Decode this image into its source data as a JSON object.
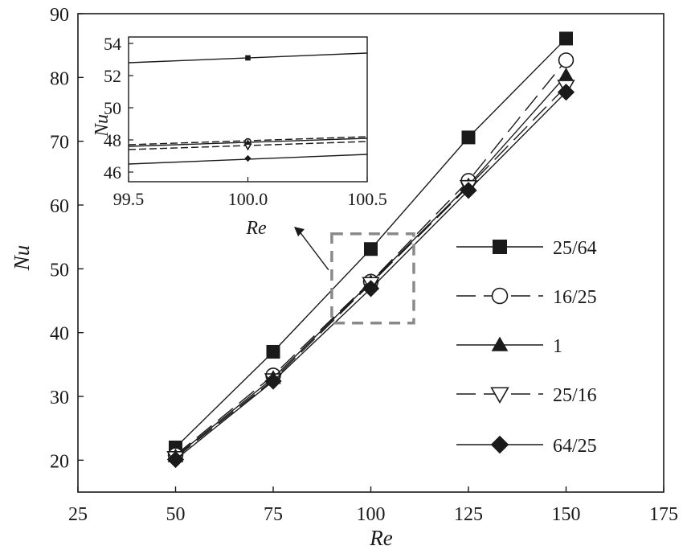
{
  "chart_data": [
    {
      "type": "line",
      "xlabel": "Re",
      "ylabel": "Nu",
      "xlim": [
        25,
        175
      ],
      "ylim": [
        15,
        90
      ],
      "xticks": [
        25,
        50,
        75,
        100,
        125,
        150,
        175
      ],
      "yticks": [
        20,
        30,
        40,
        50,
        60,
        70,
        80,
        90
      ],
      "x": [
        50,
        75,
        100,
        125,
        150
      ],
      "series": [
        {
          "name": "25/64",
          "values": [
            22.0,
            37.0,
            53.1,
            70.6,
            86.1
          ],
          "marker": "filled-square",
          "line": "solid"
        },
        {
          "name": "16/25",
          "values": [
            20.8,
            33.3,
            48.0,
            63.8,
            82.7
          ],
          "marker": "open-circle",
          "line": "long-dash"
        },
        {
          "name": "1",
          "values": [
            20.6,
            32.9,
            47.9,
            63.1,
            80.3
          ],
          "marker": "filled-triangle",
          "line": "solid"
        },
        {
          "name": "25/16",
          "values": [
            20.4,
            32.6,
            47.7,
            62.9,
            78.6
          ],
          "marker": "open-triangle-down",
          "line": "long-dash"
        },
        {
          "name": "64/25",
          "values": [
            20.1,
            32.4,
            46.9,
            62.3,
            77.7
          ],
          "marker": "filled-diamond",
          "line": "solid"
        }
      ],
      "highlight_region": {
        "x": [
          90,
          111
        ],
        "y": [
          41.5,
          55.5
        ]
      },
      "legend_position": "right",
      "grid": false
    },
    {
      "type": "line",
      "role": "inset",
      "xlabel": "Re",
      "ylabel": "Nu",
      "xlim": [
        99.5,
        100.5
      ],
      "ylim": [
        45.4,
        54.4
      ],
      "xticks": [
        "99.5",
        "100.0",
        "100.5"
      ],
      "yticks": [
        "46",
        "48",
        "50",
        "52",
        "54"
      ],
      "series": [
        {
          "name": "25/64",
          "x": [
            99.5,
            100.5
          ],
          "values": [
            52.8,
            53.4
          ],
          "marker_x": 100,
          "marker_y": 53.1,
          "marker": "filled-square",
          "line": "solid"
        },
        {
          "name": "16/25",
          "x": [
            99.5,
            100.5
          ],
          "values": [
            47.7,
            48.2
          ],
          "marker_x": 100,
          "marker_y": 47.9,
          "marker": "open-circle",
          "line": "long-dash"
        },
        {
          "name": "1",
          "x": [
            99.5,
            100.5
          ],
          "values": [
            47.6,
            48.1
          ],
          "marker_x": 100,
          "marker_y": 47.85,
          "marker": "filled-triangle",
          "line": "solid"
        },
        {
          "name": "25/16",
          "x": [
            99.5,
            100.5
          ],
          "values": [
            47.4,
            47.9
          ],
          "marker_x": 100,
          "marker_y": 47.6,
          "marker": "open-triangle-down",
          "line": "long-dash"
        },
        {
          "name": "64/25",
          "x": [
            99.5,
            100.5
          ],
          "values": [
            46.5,
            47.1
          ],
          "marker_x": 100,
          "marker_y": 46.85,
          "marker": "filled-diamond",
          "line": "solid"
        }
      ]
    }
  ]
}
